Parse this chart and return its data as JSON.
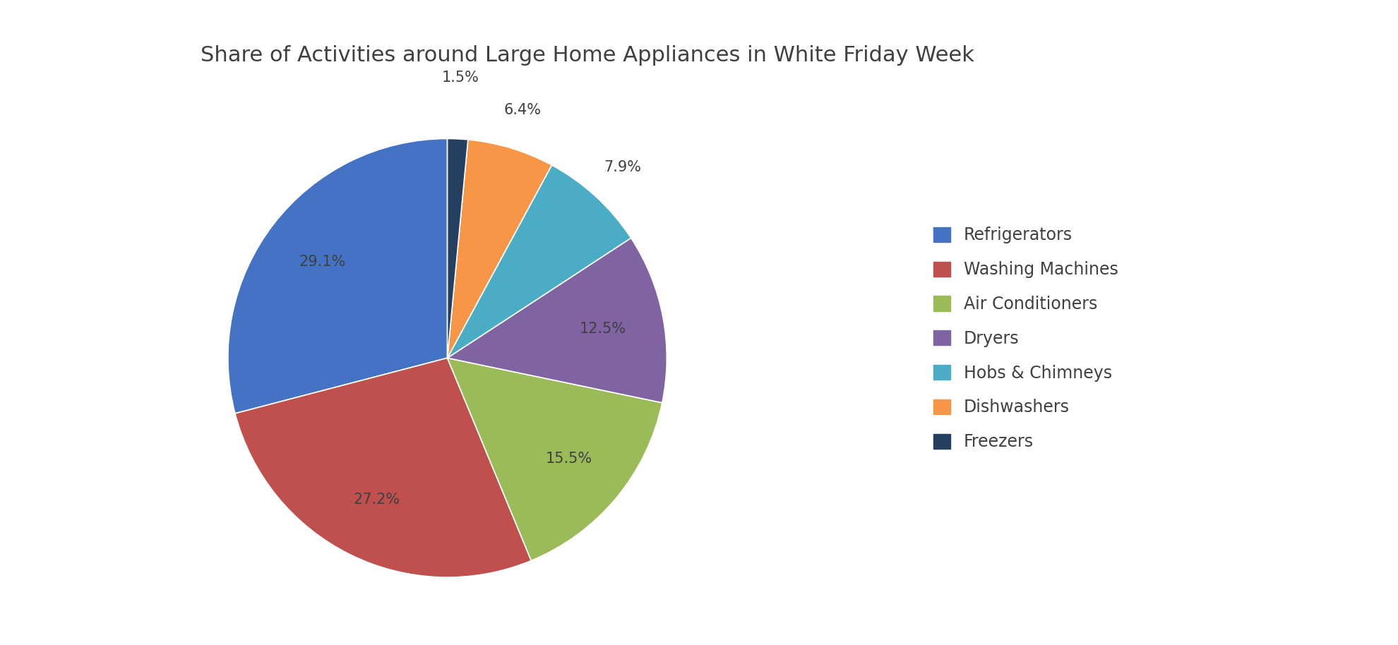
{
  "title": "Share of Activities around Large Home Appliances in White Friday Week",
  "labels": [
    "Refrigerators",
    "Washing Machines",
    "Air Conditioners",
    "Dryers",
    "Hobs & Chimneys",
    "Dishwashers",
    "Freezers"
  ],
  "values": [
    29.1,
    27.2,
    15.5,
    12.5,
    7.9,
    6.4,
    1.5
  ],
  "colors": [
    "#4472C4",
    "#C0504D",
    "#9BBB59",
    "#8064A2",
    "#4BACC6",
    "#F79646",
    "#243F60"
  ],
  "pct_labels": [
    "29.1%",
    "27.2%",
    "15.5%",
    "12.5%",
    "7.9%",
    "6.4%",
    "1.5%"
  ],
  "background_color": "#FFFFFF",
  "title_fontsize": 22,
  "legend_fontsize": 17,
  "pct_fontsize": 15,
  "startangle": 90
}
